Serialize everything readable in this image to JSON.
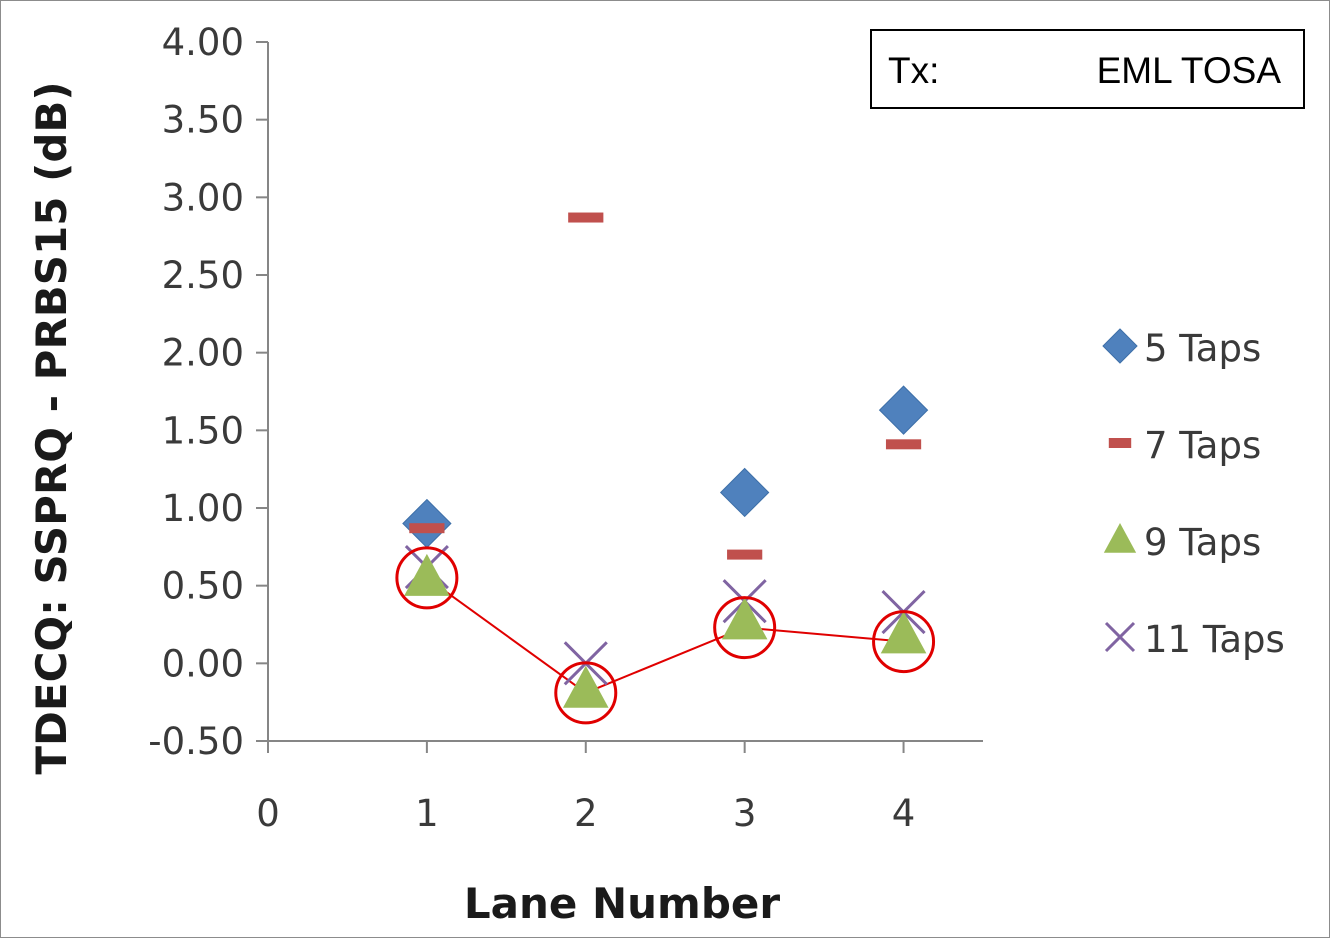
{
  "chart_data": {
    "type": "scatter",
    "title": "",
    "xlabel": "Lane Number",
    "ylabel": "TDECQ: SSPRQ - PRBS15 (dB)",
    "xlim": [
      0,
      4.5
    ],
    "ylim": [
      -0.5,
      4.0
    ],
    "x_ticks": [
      "0",
      "1",
      "2",
      "3",
      "4"
    ],
    "y_ticks": [
      "-0.50",
      "0.00",
      "0.50",
      "1.00",
      "1.50",
      "2.00",
      "2.50",
      "3.00",
      "3.50",
      "4.00"
    ],
    "grid": false,
    "legend_position": "right",
    "series": [
      {
        "name": "5 Taps",
        "marker": "diamond",
        "color": "#4f81bd",
        "x": [
          1,
          3,
          4
        ],
        "y": [
          0.9,
          1.1,
          1.63
        ]
      },
      {
        "name": "7 Taps",
        "marker": "dash",
        "color": "#c0504d",
        "x": [
          1,
          2,
          3,
          4
        ],
        "y": [
          0.87,
          2.87,
          0.7,
          1.41
        ]
      },
      {
        "name": "9 Taps",
        "marker": "triangle",
        "color": "#9bbb59",
        "x": [
          1,
          2,
          3,
          4
        ],
        "y": [
          0.55,
          -0.17,
          0.27,
          0.18
        ]
      },
      {
        "name": "11 Taps",
        "marker": "x",
        "color": "#8064a2",
        "x": [
          1,
          2,
          3,
          4
        ],
        "y": [
          0.62,
          0.0,
          0.4,
          0.33
        ]
      }
    ],
    "annotation": {
      "label": "Tx:",
      "value": "EML TOSA"
    },
    "highlight": {
      "color": "#e00000",
      "x": [
        1,
        2,
        3,
        4
      ],
      "y": [
        0.55,
        -0.19,
        0.23,
        0.14
      ]
    }
  }
}
